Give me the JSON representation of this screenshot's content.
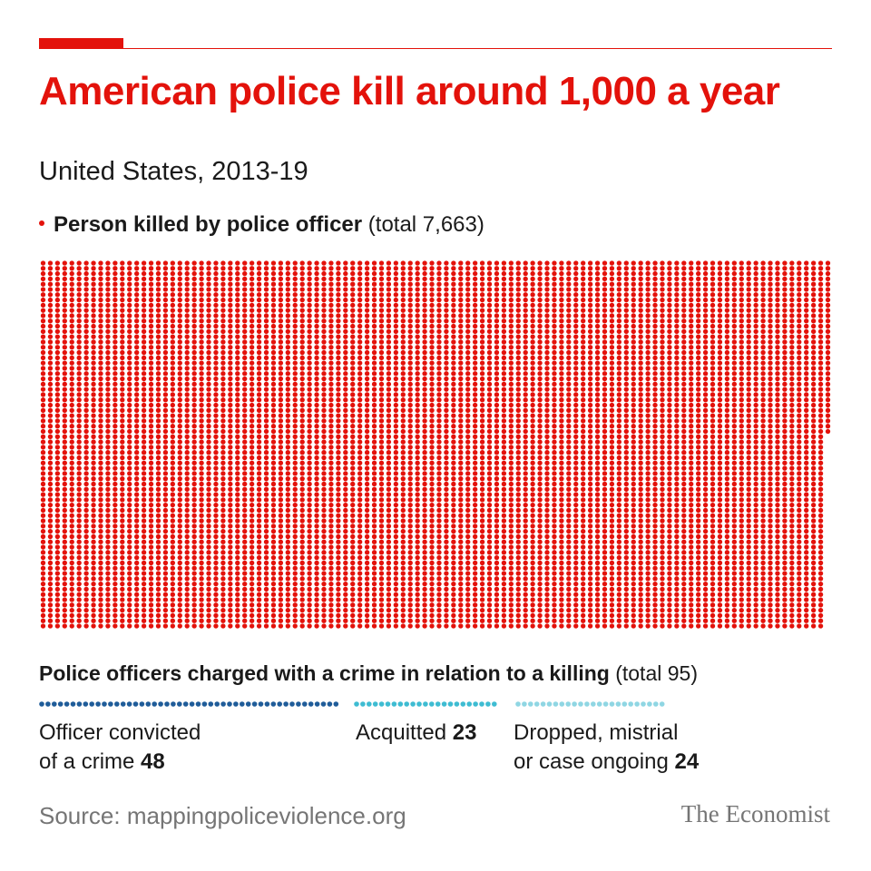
{
  "title": "American police kill around 1,000 a year",
  "subtitle": "United States, 2013-19",
  "legend": {
    "label": "Person killed by police officer",
    "note": "(total 7,663)",
    "color": "#e3120b"
  },
  "charged": {
    "heading": "Police officers charged with a crime in relation to a killing",
    "note": "(total 95)",
    "categories": [
      {
        "line1": "Officer convicted",
        "line2": "of a crime",
        "value_label": "48",
        "color": "#1f5c99"
      },
      {
        "line1": "Acquitted",
        "line2": "",
        "value_label": "23",
        "color": "#3ebcd2"
      },
      {
        "line1": "Dropped, mistrial",
        "line2": "or case ongoing",
        "value_label": "24",
        "color": "#8fd6e3"
      }
    ]
  },
  "source": "Source: mappingpoliceviolence.org",
  "brand": "The Economist",
  "chart_data": {
    "type": "waffle",
    "title": "American police kill around 1,000 a year",
    "subtitle": "United States, 2013-19",
    "series": [
      {
        "name": "Person killed by police officer",
        "value": 7663
      }
    ],
    "sub_series": [
      {
        "name": "Officer convicted of a crime",
        "value": 48
      },
      {
        "name": "Acquitted",
        "value": 23
      },
      {
        "name": "Dropped, mistrial or case ongoing",
        "value": 24
      }
    ],
    "sub_total": 95
  }
}
